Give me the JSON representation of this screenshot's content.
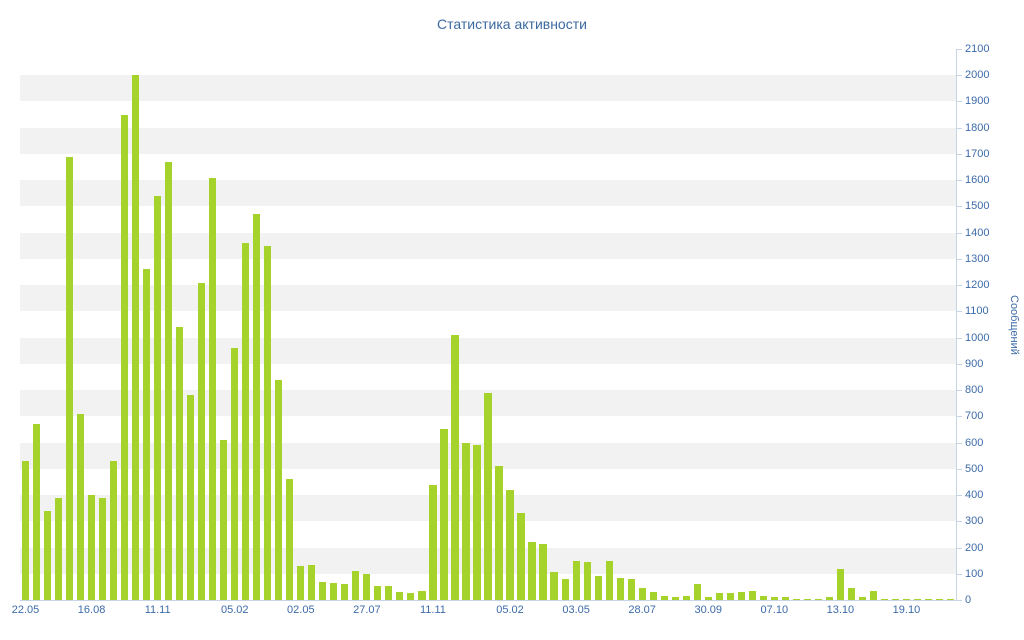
{
  "chart_data": {
    "type": "bar",
    "title": "Статистика активности",
    "xlabel": "",
    "ylabel": "Сообщений",
    "ylim": [
      0,
      2100
    ],
    "y_tick_step": 100,
    "grid": "horizontal-striped-bands",
    "legend": "none",
    "values": [
      530,
      670,
      340,
      390,
      1690,
      710,
      400,
      390,
      530,
      1850,
      2000,
      1260,
      1540,
      1670,
      1040,
      780,
      1210,
      1610,
      610,
      960,
      1360,
      1470,
      1350,
      840,
      460,
      130,
      135,
      70,
      65,
      60,
      110,
      100,
      55,
      55,
      30,
      25,
      35,
      440,
      650,
      1010,
      600,
      590,
      790,
      510,
      420,
      330,
      220,
      215,
      105,
      80,
      150,
      145,
      90,
      150,
      85,
      80,
      45,
      30,
      15,
      10,
      15,
      60,
      10,
      25,
      25,
      30,
      35,
      15,
      10,
      10,
      5,
      5,
      5,
      10,
      120,
      45,
      10,
      35,
      5,
      5,
      5,
      5,
      5,
      5,
      5
    ],
    "x_tick_labels": [
      {
        "index": 0,
        "label": "22.05"
      },
      {
        "index": 6,
        "label": "16.08"
      },
      {
        "index": 12,
        "label": "11.11"
      },
      {
        "index": 19,
        "label": "05.02"
      },
      {
        "index": 25,
        "label": "02.05"
      },
      {
        "index": 31,
        "label": "27.07"
      },
      {
        "index": 37,
        "label": "11.11"
      },
      {
        "index": 44,
        "label": "05.02"
      },
      {
        "index": 50,
        "label": "03.05"
      },
      {
        "index": 56,
        "label": "28.07"
      },
      {
        "index": 62,
        "label": "30.09"
      },
      {
        "index": 68,
        "label": "07.10"
      },
      {
        "index": 74,
        "label": "13.10"
      },
      {
        "index": 80,
        "label": "19.10"
      }
    ],
    "colors": {
      "bar": "#a6d32b",
      "title_text": "#3c6aa0",
      "axis_text": "#3d6ba8",
      "axis_line": "#c6d4e5",
      "stripe_band": "#f2f2f2",
      "background": "#ffffff"
    }
  }
}
